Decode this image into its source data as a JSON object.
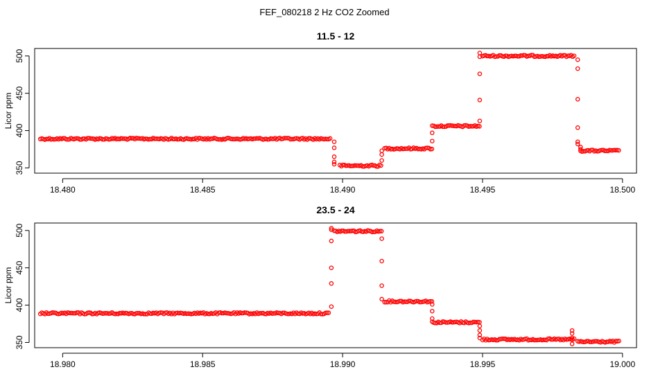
{
  "figure": {
    "title": "FEF_080218  2 Hz CO2 Zoomed"
  },
  "colors": {
    "points": "#ff0000",
    "axes": "#000000",
    "background": "#ffffff"
  },
  "chart_data": [
    {
      "type": "scatter",
      "title": "11.5 - 12",
      "xlabel": "",
      "ylabel": "Licor ppm",
      "xlim": [
        18.479,
        18.5005
      ],
      "ylim": [
        343,
        510
      ],
      "xticks": [
        "18.480",
        "18.485",
        "18.490",
        "18.495",
        "18.500"
      ],
      "xtick_values": [
        18.48,
        18.485,
        18.49,
        18.495,
        18.5
      ],
      "yticks": [
        "350",
        "400",
        "450",
        "500"
      ],
      "ytick_values": [
        350,
        400,
        450,
        500
      ],
      "grid": false,
      "segments": [
        {
          "x0": 18.4792,
          "x1": 18.4896,
          "y": 389
        },
        {
          "x0": 18.4899,
          "x1": 18.4914,
          "y": 353
        },
        {
          "x0": 18.4915,
          "x1": 18.4932,
          "y": 376
        },
        {
          "x0": 18.4932,
          "x1": 18.4949,
          "y": 406
        },
        {
          "x0": 18.495,
          "x1": 18.4983,
          "y": 500
        },
        {
          "x0": 18.4985,
          "x1": 18.4999,
          "y": 373
        }
      ],
      "transitions": [
        {
          "x": 18.4897,
          "y": [
            385,
            377,
            365,
            358,
            355
          ]
        },
        {
          "x": 18.4914,
          "y": [
            360,
            368,
            373
          ]
        },
        {
          "x": 18.4932,
          "y": [
            386,
            397
          ]
        },
        {
          "x": 18.4949,
          "y": [
            413,
            441,
            476,
            499,
            504
          ]
        },
        {
          "x": 18.4984,
          "y": [
            495,
            483,
            442,
            404,
            385,
            382
          ]
        },
        {
          "x": 18.4985,
          "y": [
            378,
            375
          ]
        }
      ]
    },
    {
      "type": "scatter",
      "title": "23.5 - 24",
      "xlabel": "",
      "ylabel": "Licor ppm",
      "xlim": [
        18.979,
        19.0005
      ],
      "ylim": [
        343,
        510
      ],
      "xticks": [
        "18.980",
        "18.985",
        "18.990",
        "18.995",
        "19.000"
      ],
      "xtick_values": [
        18.98,
        18.985,
        18.99,
        18.995,
        19.0
      ],
      "yticks": [
        "350",
        "400",
        "450",
        "500"
      ],
      "ytick_values": [
        350,
        400,
        450,
        500
      ],
      "grid": false,
      "segments": [
        {
          "x0": 18.9792,
          "x1": 18.9895,
          "y": 389
        },
        {
          "x0": 18.9897,
          "x1": 18.9914,
          "y": 499
        },
        {
          "x0": 18.9915,
          "x1": 18.9932,
          "y": 405
        },
        {
          "x0": 18.9932,
          "x1": 18.9949,
          "y": 377
        },
        {
          "x0": 18.995,
          "x1": 18.9983,
          "y": 354
        },
        {
          "x0": 18.9984,
          "x1": 18.9999,
          "y": 351
        }
      ],
      "transitions": [
        {
          "x": 18.9896,
          "y": [
            398,
            429,
            450,
            486,
            501,
            503
          ]
        },
        {
          "x": 18.9914,
          "y": [
            489,
            459,
            426,
            408
          ]
        },
        {
          "x": 18.9932,
          "y": [
            401,
            392,
            382
          ]
        },
        {
          "x": 18.9949,
          "y": [
            372,
            366,
            360,
            356
          ]
        },
        {
          "x": 18.9982,
          "y": [
            348,
            356,
            362,
            366
          ]
        }
      ]
    }
  ]
}
